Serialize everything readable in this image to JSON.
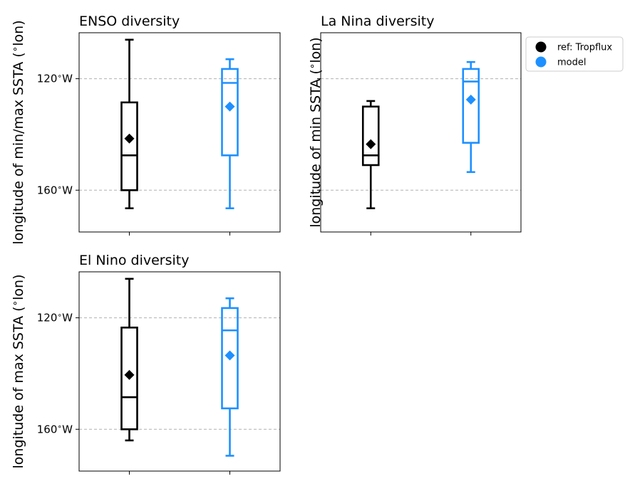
{
  "legend": {
    "placement": "outside-top-right",
    "entries": [
      {
        "label": "ref: Tropflux",
        "color": "#000000",
        "marker": "circle"
      },
      {
        "label": "model",
        "color": "#1e90ff",
        "marker": "circle"
      }
    ]
  },
  "chart_data": [
    {
      "type": "boxplot",
      "title": "ENSO diversity",
      "ylabel": "longitude of min/max SSTA ($^\\circ$lon)",
      "y_inverted": true,
      "ylim": [
        175,
        103.5
      ],
      "yticks": [
        {
          "value": 120,
          "label": "120$^\\circ$W"
        },
        {
          "value": 160,
          "label": "160$^\\circ$W"
        }
      ],
      "grid": "horizontal-dashed",
      "series": [
        {
          "name": "ref: Tropflux",
          "color": "#000000",
          "whisker_low": 106,
          "q1": 128.5,
          "median": 147.5,
          "q3": 160,
          "whisker_high": 166.5,
          "mean": 141.5
        },
        {
          "name": "model",
          "color": "#1e90ff",
          "whisker_low": 113,
          "q1": 116.5,
          "median": 121.5,
          "q3": 147.5,
          "whisker_high": 166.5,
          "mean": 130
        }
      ]
    },
    {
      "type": "boxplot",
      "title": "La Nina diversity",
      "ylabel": "longitude of min SSTA ($^\\circ$lon)",
      "y_inverted": true,
      "ylim": [
        175,
        103.5
      ],
      "yticks": [
        {
          "value": 120,
          "label": ""
        },
        {
          "value": 160,
          "label": ""
        }
      ],
      "grid": "horizontal-dashed",
      "series": [
        {
          "name": "ref: Tropflux",
          "color": "#000000",
          "whisker_low": 128,
          "q1": 130,
          "median": 147.5,
          "q3": 151,
          "whisker_high": 166.5,
          "mean": 143.5
        },
        {
          "name": "model",
          "color": "#1e90ff",
          "whisker_low": 114,
          "q1": 116.5,
          "median": 121,
          "q3": 143,
          "whisker_high": 153.5,
          "mean": 127.5
        }
      ]
    },
    {
      "type": "boxplot",
      "title": "El Nino diversity",
      "ylabel": "longitude of max SSTA ($^\\circ$lon)",
      "y_inverted": true,
      "ylim": [
        175,
        103.5
      ],
      "yticks": [
        {
          "value": 120,
          "label": "120$^\\circ$W"
        },
        {
          "value": 160,
          "label": "160$^\\circ$W"
        }
      ],
      "grid": "horizontal-dashed",
      "series": [
        {
          "name": "ref: Tropflux",
          "color": "#000000",
          "whisker_low": 106,
          "q1": 123.5,
          "median": 148.5,
          "q3": 160,
          "whisker_high": 164,
          "mean": 140.5
        },
        {
          "name": "model",
          "color": "#1e90ff",
          "whisker_low": 113,
          "q1": 116.5,
          "median": 124.5,
          "q3": 152.5,
          "whisker_high": 169.5,
          "mean": 133.5
        }
      ]
    }
  ]
}
